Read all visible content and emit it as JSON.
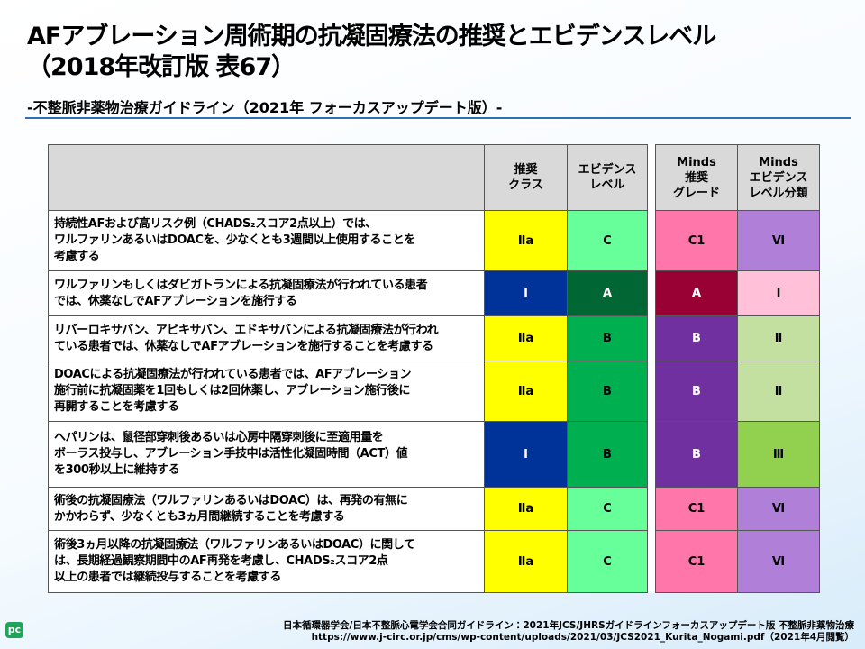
{
  "header": {
    "title": "AFアブレーション周術期の抗凝固療法の推奨とエビデンスレベル",
    "title_line2": "（2018年改訂版 表67）",
    "subtitle": "-不整脈非薬物治療ガイドライン（2021年 フォーカスアップデート版）-"
  },
  "table": {
    "columns": [
      [
        "推奨",
        "クラス"
      ],
      [
        "エビデンス",
        "レベル"
      ],
      [
        "Minds",
        "推奨",
        "グレード"
      ],
      [
        "Minds",
        "エビデンス",
        "レベル分類"
      ]
    ],
    "rows": [
      {
        "text": [
          "持続性AFおよび高リスク例（CHADS₂スコア2点以上）では、",
          "ワルファリンあるいはDOACを、少なくとも3週間以上使用することを",
          "考慮する"
        ],
        "cells": [
          {
            "text": "Ⅱa",
            "color": "#ffff00"
          },
          {
            "text": "C",
            "color": "#66ff99"
          },
          {
            "text": "C1",
            "color": "#ff77aa"
          },
          {
            "text": "Ⅵ",
            "color": "#b07fd8"
          }
        ]
      },
      {
        "text": [
          "ワルファリンもしくはダビガトランによる抗凝固療法が行われている患者",
          "では、休薬なしでAFアブレーションを施行する"
        ],
        "cells": [
          {
            "text": "I",
            "color": "#003399"
          },
          {
            "text": "A",
            "color": "#006633"
          },
          {
            "text": "A",
            "color": "#990033"
          },
          {
            "text": "I",
            "color": "#ffc0d8"
          }
        ]
      },
      {
        "text": [
          "リバーロキサバン、アピキサバン、エドキサバンによる抗凝固療法が行われ",
          "ている患者では、休薬なしでAFアブレーションを施行することを考慮する"
        ],
        "cells": [
          {
            "text": "Ⅱa",
            "color": "#ffff00"
          },
          {
            "text": "B",
            "color": "#00b050"
          },
          {
            "text": "B",
            "color": "#7030a0"
          },
          {
            "text": "Ⅱ",
            "color": "#c4e0a0"
          }
        ]
      },
      {
        "text": [
          "DOACによる抗凝固療法が行われている患者では、AFアブレーション",
          "施行前に抗凝固薬を1回もしくは2回休薬し、アブレーション施行後に",
          "再開することを考慮する"
        ],
        "cells": [
          {
            "text": "Ⅱa",
            "color": "#ffff00"
          },
          {
            "text": "B",
            "color": "#00b050"
          },
          {
            "text": "B",
            "color": "#7030a0"
          },
          {
            "text": "Ⅱ",
            "color": "#c4e0a0"
          }
        ]
      },
      {
        "text": [
          "ヘパリンは、鼠径部穿刺後あるいは心房中隔穿刺後に至適用量を",
          "ボーラス投与し、アブレーション手技中は活性化凝固時間（ACT）値",
          "を300秒以上に維持する"
        ],
        "cells": [
          {
            "text": "I",
            "color": "#003399"
          },
          {
            "text": "B",
            "color": "#00b050"
          },
          {
            "text": "B",
            "color": "#7030a0"
          },
          {
            "text": "Ⅲ",
            "color": "#92d050"
          }
        ]
      },
      {
        "text": [
          "術後の抗凝固療法（ワルファリンあるいはDOAC）は、再発の有無に",
          "かかわらず、少なくとも3ヵ月間継続することを考慮する"
        ],
        "cells": [
          {
            "text": "Ⅱa",
            "color": "#ffff00"
          },
          {
            "text": "C",
            "color": "#66ff99"
          },
          {
            "text": "C1",
            "color": "#ff77aa"
          },
          {
            "text": "Ⅵ",
            "color": "#b07fd8"
          }
        ]
      },
      {
        "text": [
          "術後3ヵ月以降の抗凝固療法（ワルファリンあるいはDOAC）に関して",
          "は、長期経過観察期間中のAF再発を考慮し、CHADS₂スコア2点",
          "以上の患者では継続投与することを考慮する"
        ],
        "cells": [
          {
            "text": "Ⅱa",
            "color": "#ffff00"
          },
          {
            "text": "C",
            "color": "#66ff99"
          },
          {
            "text": "C1",
            "color": "#ff77aa"
          },
          {
            "text": "Ⅵ",
            "color": "#b07fd8"
          }
        ]
      }
    ]
  },
  "footer": {
    "citation": "日本循環器学会/日本不整脈心電学会合同ガイドライン：2021年JCS/JHRSガイドラインフォーカスアップデート版 不整脈非薬物治療",
    "url": "https://www.j-circ.or.jp/cms/wp-content/uploads/2021/03/JCS2021_Kurita_Nogami.pdf（2021年4月閲覧）"
  },
  "logo": "pc"
}
